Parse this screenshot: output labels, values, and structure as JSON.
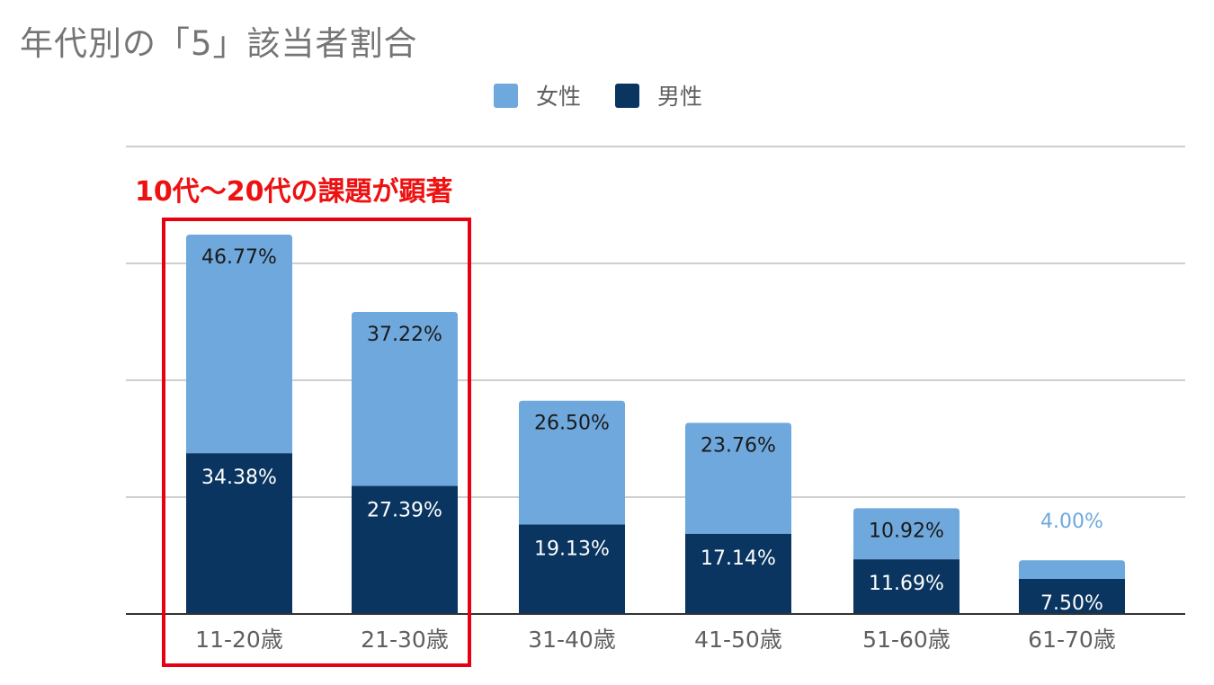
{
  "chart_data": {
    "type": "bar",
    "stacked": true,
    "title": "年代別の「5」該当者割合",
    "annotation": "10代〜20代の課題が顕著",
    "categories": [
      "11-20歳",
      "21-30歳",
      "31-40歳",
      "41-50歳",
      "51-60歳",
      "61-70歳"
    ],
    "series": [
      {
        "name": "男性",
        "color": "#0a3560",
        "label_color": "#ffffff",
        "values": [
          34.38,
          27.39,
          19.13,
          17.14,
          11.69,
          7.5
        ],
        "labels": [
          "34.38%",
          "27.39%",
          "19.13%",
          "17.14%",
          "11.69%",
          "7.50%"
        ]
      },
      {
        "name": "女性",
        "color": "#6fa8dc",
        "label_color": "#1a1a1a",
        "values": [
          46.77,
          37.22,
          26.5,
          23.76,
          10.92,
          4.0
        ],
        "labels": [
          "46.77%",
          "37.22%",
          "26.50%",
          "23.76%",
          "10.92%",
          "4.00%"
        ]
      }
    ],
    "legend": [
      "女性",
      "男性"
    ],
    "legend_position": "top",
    "ylim": [
      0,
      100
    ],
    "gridlines": true,
    "xlabel": "",
    "ylabel": "",
    "highlighted_categories": [
      "11-20歳",
      "21-30歳"
    ]
  }
}
